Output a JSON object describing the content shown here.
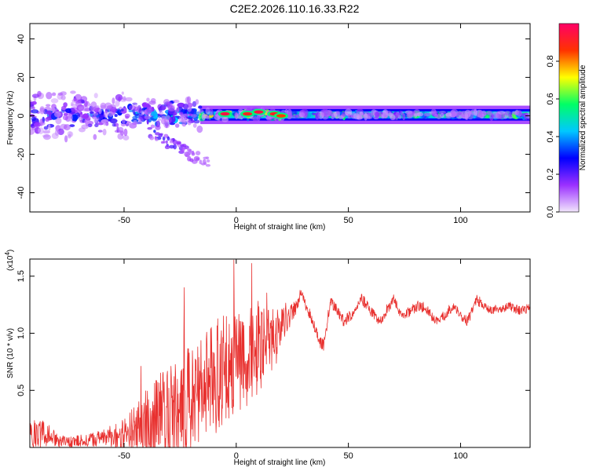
{
  "title": "C2E2.2026.110.16.33.R22",
  "chart_data": [
    {
      "type": "heatmap",
      "name": "spectrogram",
      "xlabel": "Height of straight line (km)",
      "ylabel": "Frequency (Hz)",
      "xlim": [
        -92,
        131
      ],
      "ylim": [
        -50,
        48
      ],
      "xticks": [
        -50,
        0,
        50,
        100
      ],
      "xtick_labels": [
        "-50",
        "0",
        "50",
        "100"
      ],
      "yticks": [
        40,
        20,
        0,
        -20,
        -40
      ],
      "ytick_labels": [
        "40",
        "20",
        "0",
        "-20",
        "-40"
      ],
      "colorbar": {
        "label": "Normalized spectral amplitude",
        "range": [
          0.0,
          1.0
        ],
        "ticks": [
          0.0,
          0.2,
          0.4,
          0.6,
          0.8
        ],
        "tick_labels": [
          "0.0",
          "0.2",
          "0.4",
          "0.6",
          "0.8"
        ],
        "colormap": [
          "#f2e6fc",
          "#9b30ff",
          "#0000ff",
          "#00c8ff",
          "#00ff66",
          "#ffff00",
          "#ff3300",
          "#ff0066"
        ]
      },
      "band": {
        "center_hz": 0.5,
        "halfwidth_hz": 3,
        "segments": [
          {
            "x_from": -92,
            "x_to": -48,
            "amplitude": 0.3,
            "spread_hz": 9
          },
          {
            "x_from": -48,
            "x_to": -16,
            "amplitude": 0.4,
            "spread_hz": 6
          },
          {
            "x_from": -16,
            "x_to": 22,
            "amplitude": 0.6,
            "spread_hz": 2
          },
          {
            "x_from": 22,
            "x_to": 131,
            "amplitude": 0.5,
            "spread_hz": 1
          }
        ],
        "peaks": [
          {
            "x": -5,
            "y": 1,
            "amplitude": 0.95
          },
          {
            "x": 5,
            "y": 1,
            "amplitude": 0.9
          },
          {
            "x": 10,
            "y": 2,
            "amplitude": 0.95
          },
          {
            "x": 17,
            "y": 1,
            "amplitude": 0.9
          },
          {
            "x": 20,
            "y": 0,
            "amplitude": 0.85
          }
        ]
      },
      "tail": {
        "x_from": -40,
        "x_to": -12,
        "y_from": -8,
        "y_to": -25
      }
    },
    {
      "type": "line",
      "name": "snr",
      "xlabel": "Height of straight line (km)",
      "ylabel": "SNR (10 * v/v)",
      "y_multiplier_label": "(x10",
      "y_multiplier_exponent": "4",
      "xlim": [
        -92,
        131
      ],
      "ylim": [
        0,
        1.65
      ],
      "xticks": [
        -50,
        0,
        50,
        100
      ],
      "xtick_labels": [
        "-50",
        "0",
        "50",
        "100"
      ],
      "yticks": [
        0.5,
        1.0,
        1.5
      ],
      "ytick_labels": [
        "0.5",
        "1.0",
        "1.5"
      ],
      "color": "#e8302e",
      "envelope": {
        "x": [
          -92,
          -88,
          -84,
          -80,
          -75,
          -70,
          -65,
          -60,
          -55,
          -50,
          -45,
          -40,
          -35,
          -30,
          -25,
          -20,
          -15,
          -10,
          -5,
          0,
          5,
          8,
          10,
          12,
          15,
          18,
          22,
          26,
          29,
          32,
          35,
          37,
          39,
          42,
          45,
          48,
          52,
          56,
          60,
          64,
          67,
          70,
          74,
          78,
          82,
          86,
          90,
          94,
          97,
          100,
          103,
          107,
          110,
          114,
          118,
          122,
          126,
          131
        ],
        "base": [
          0.15,
          0.1,
          0.12,
          0.06,
          0.05,
          0.06,
          0.07,
          0.08,
          0.1,
          0.12,
          0.16,
          0.22,
          0.3,
          0.32,
          0.38,
          0.42,
          0.55,
          0.6,
          0.7,
          0.75,
          0.8,
          0.85,
          0.85,
          0.82,
          0.9,
          0.98,
          1.12,
          1.2,
          1.35,
          1.2,
          1.05,
          0.92,
          0.9,
          1.28,
          1.2,
          1.1,
          1.18,
          1.3,
          1.2,
          1.1,
          1.2,
          1.3,
          1.15,
          1.2,
          1.25,
          1.18,
          1.1,
          1.18,
          1.25,
          1.15,
          1.1,
          1.3,
          1.25,
          1.2,
          1.22,
          1.24,
          1.2,
          1.22
        ],
        "noise": [
          0.12,
          0.15,
          0.1,
          0.06,
          0.05,
          0.05,
          0.06,
          0.07,
          0.1,
          0.15,
          0.2,
          0.3,
          0.35,
          0.4,
          0.45,
          0.5,
          0.45,
          0.5,
          0.5,
          0.45,
          0.45,
          0.4,
          0.5,
          0.4,
          0.3,
          0.25,
          0.15,
          0.08,
          0.05,
          0.05,
          0.05,
          0.05,
          0.06,
          0.05,
          0.05,
          0.05,
          0.05,
          0.05,
          0.05,
          0.04,
          0.05,
          0.05,
          0.04,
          0.05,
          0.05,
          0.05,
          0.04,
          0.05,
          0.04,
          0.04,
          0.05,
          0.05,
          0.04,
          0.04,
          0.04,
          0.04,
          0.04,
          0.04
        ]
      }
    }
  ]
}
